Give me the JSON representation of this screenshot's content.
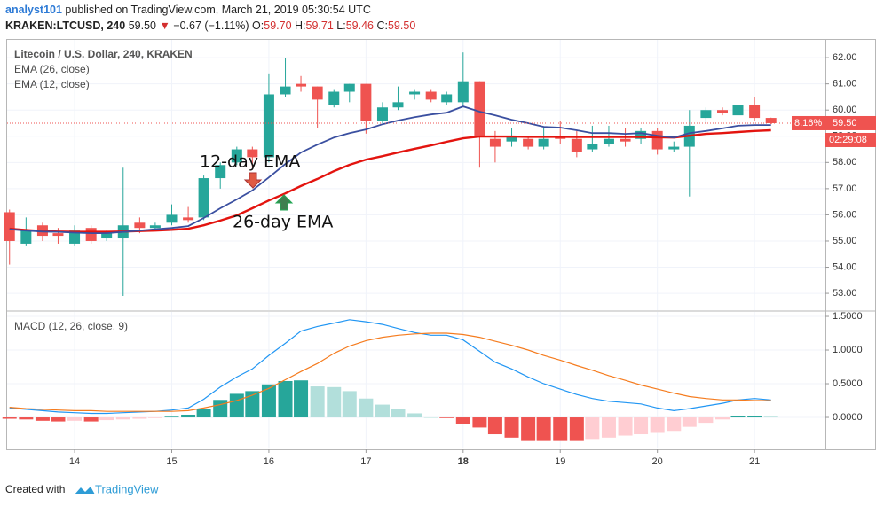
{
  "header": {
    "author": "analyst101",
    "published": "published on TradingView.com, March 21, 2019 05:30:54 UTC",
    "symbol": "KRAKEN:LTCUSD, 240",
    "last": "59.50",
    "change_arrow": "▼",
    "change": "−0.67 (−1.11%)",
    "ohlc": [
      {
        "label": "O:",
        "value": "59.70"
      },
      {
        "label": "H:",
        "value": "59.71"
      },
      {
        "label": "L:",
        "value": "59.46"
      },
      {
        "label": "C:",
        "value": "59.50"
      }
    ]
  },
  "chart_data": [
    {
      "type": "candlestick",
      "title": "Litecoin / U.S. Dollar, 240, KRAKEN",
      "x": [
        13.33,
        13.5,
        13.67,
        13.83,
        14,
        14.17,
        14.33,
        14.5,
        14.67,
        14.83,
        15,
        15.17,
        15.33,
        15.5,
        15.67,
        15.83,
        16,
        16.17,
        16.33,
        16.5,
        16.67,
        16.83,
        17,
        17.17,
        17.33,
        17.5,
        17.67,
        17.83,
        18,
        18.17,
        18.33,
        18.5,
        18.67,
        18.83,
        19,
        19.17,
        19.33,
        19.5,
        19.67,
        19.83,
        20,
        20.17,
        20.33,
        20.5,
        20.67,
        20.83,
        21,
        21.17
      ],
      "open": [
        56.1,
        54.9,
        55.6,
        55.3,
        54.9,
        55.5,
        55.1,
        55.1,
        55.7,
        55.5,
        55.7,
        55.9,
        55.9,
        57.4,
        58.0,
        58.5,
        58.2,
        60.6,
        61.0,
        60.9,
        60.2,
        60.7,
        61.0,
        59.6,
        60.1,
        60.6,
        60.7,
        60.3,
        60.3,
        61.1,
        58.9,
        58.8,
        58.9,
        58.6,
        59.0,
        58.9,
        58.5,
        58.7,
        58.9,
        58.9,
        59.2,
        58.5,
        58.6,
        59.7,
        60.0,
        59.8,
        60.2,
        59.7
      ],
      "high": [
        56.2,
        55.9,
        55.7,
        55.5,
        55.6,
        55.6,
        55.4,
        57.8,
        55.9,
        55.7,
        56.4,
        56.3,
        57.5,
        58.0,
        58.6,
        58.6,
        61.4,
        62.0,
        61.3,
        60.9,
        60.8,
        61.0,
        61.0,
        60.3,
        60.9,
        60.8,
        60.8,
        60.7,
        62.2,
        61.1,
        59.2,
        59.3,
        59.0,
        59.3,
        59.6,
        59.2,
        59.4,
        59.4,
        59.3,
        59.3,
        59.3,
        58.8,
        60.0,
        60.1,
        60.1,
        60.6,
        60.5,
        59.71
      ],
      "low": [
        54.1,
        54.8,
        55.0,
        54.9,
        54.8,
        54.9,
        55.0,
        52.9,
        55.3,
        55.4,
        55.6,
        55.7,
        55.8,
        57.0,
        57.9,
        57.8,
        58.0,
        60.5,
        60.7,
        59.3,
        60.1,
        60.3,
        59.1,
        59.5,
        60.0,
        60.4,
        60.3,
        60.2,
        60.1,
        57.8,
        58.0,
        58.6,
        58.5,
        58.5,
        58.7,
        58.2,
        58.4,
        58.6,
        58.6,
        58.7,
        58.3,
        58.4,
        56.7,
        59.5,
        59.8,
        59.7,
        59.6,
        59.46
      ],
      "close": [
        55.0,
        55.4,
        55.2,
        55.2,
        55.4,
        55.0,
        55.3,
        55.6,
        55.5,
        55.6,
        56.0,
        55.8,
        57.4,
        57.9,
        58.5,
        58.2,
        60.6,
        60.9,
        60.9,
        60.4,
        60.7,
        61.0,
        59.6,
        60.1,
        60.3,
        60.7,
        60.4,
        60.6,
        61.1,
        59.0,
        58.6,
        59.0,
        58.6,
        58.9,
        58.9,
        58.4,
        58.7,
        58.9,
        58.8,
        59.2,
        58.5,
        58.6,
        59.4,
        60.0,
        59.9,
        60.2,
        59.7,
        59.5
      ],
      "up_color": "#26a69a",
      "down_color": "#ef5350",
      "series": [
        {
          "name": "EMA (26, close)",
          "color": "#e3140f",
          "values": [
            55.47,
            55.42,
            55.38,
            55.36,
            55.35,
            55.35,
            55.35,
            55.36,
            55.38,
            55.4,
            55.43,
            55.47,
            55.6,
            55.78,
            55.98,
            56.25,
            56.55,
            56.82,
            57.1,
            57.37,
            57.67,
            57.91,
            58.11,
            58.24,
            58.38,
            58.52,
            58.65,
            58.79,
            58.92,
            58.99,
            58.99,
            58.99,
            58.98,
            58.98,
            58.98,
            58.97,
            58.97,
            58.97,
            58.97,
            58.97,
            58.96,
            58.95,
            59.02,
            59.09,
            59.12,
            59.16,
            59.2,
            59.23
          ]
        },
        {
          "name": "EMA (12, close)",
          "color": "#3a4fa0",
          "values": [
            55.45,
            55.4,
            55.36,
            55.35,
            55.32,
            55.3,
            55.3,
            55.35,
            55.4,
            55.45,
            55.5,
            55.57,
            55.88,
            56.25,
            56.59,
            56.93,
            57.43,
            57.94,
            58.38,
            58.68,
            58.95,
            59.12,
            59.26,
            59.46,
            59.6,
            59.73,
            59.83,
            59.9,
            60.14,
            59.94,
            59.8,
            59.63,
            59.5,
            59.36,
            59.33,
            59.23,
            59.12,
            59.12,
            59.09,
            59.12,
            59.02,
            58.95,
            59.12,
            59.2,
            59.3,
            59.4,
            59.43,
            59.43
          ]
        }
      ],
      "xlim": [
        13.305,
        21.73
      ],
      "xticks": [
        14,
        15,
        16,
        17,
        18,
        19,
        20,
        21
      ],
      "week_start_xticks": [
        18
      ],
      "ylim": [
        52.36,
        62.68
      ],
      "yticks": [
        {
          "value": 53,
          "label": "53.00"
        },
        {
          "value": 54,
          "label": "54.00"
        },
        {
          "value": 55,
          "label": "55.00"
        },
        {
          "value": 56,
          "label": "56.00"
        },
        {
          "value": 57,
          "label": "57.00"
        },
        {
          "value": 58,
          "label": "58.00"
        },
        {
          "value": 59,
          "label": "59.00"
        },
        {
          "value": 60,
          "label": "60.00"
        },
        {
          "value": 61,
          "label": "61.00"
        },
        {
          "value": 62,
          "label": "62.00"
        }
      ],
      "grid": true,
      "last_price_label": "59.50",
      "change_percent_label": "8.16%",
      "countdown": "02:29:08",
      "annotations": [
        {
          "text": "12-day EMA"
        },
        {
          "text": "26-day EMA"
        }
      ]
    },
    {
      "type": "macd",
      "title": "MACD (12, 26, close, 9)",
      "series": [
        {
          "color": "#2196f3",
          "values": [
            0.14,
            0.12,
            0.1,
            0.08,
            0.07,
            0.06,
            0.06,
            0.07,
            0.08,
            0.09,
            0.11,
            0.14,
            0.27,
            0.45,
            0.6,
            0.72,
            0.92,
            1.1,
            1.28,
            1.35,
            1.4,
            1.45,
            1.42,
            1.38,
            1.32,
            1.26,
            1.22,
            1.22,
            1.15,
            0.98,
            0.82,
            0.72,
            0.6,
            0.5,
            0.42,
            0.34,
            0.28,
            0.24,
            0.22,
            0.2,
            0.14,
            0.1,
            0.13,
            0.17,
            0.21,
            0.26,
            0.28,
            0.26
          ]
        },
        {
          "color": "#f57c1f",
          "values": [
            0.15,
            0.13,
            0.12,
            0.11,
            0.1,
            0.1,
            0.09,
            0.09,
            0.09,
            0.09,
            0.09,
            0.1,
            0.14,
            0.19,
            0.25,
            0.33,
            0.43,
            0.56,
            0.68,
            0.8,
            0.95,
            1.06,
            1.14,
            1.19,
            1.22,
            1.24,
            1.25,
            1.25,
            1.23,
            1.19,
            1.13,
            1.07,
            1.0,
            0.92,
            0.85,
            0.77,
            0.7,
            0.62,
            0.55,
            0.48,
            0.42,
            0.36,
            0.31,
            0.28,
            0.26,
            0.26,
            0.25,
            0.25
          ]
        }
      ],
      "histogram": {
        "values": [
          -0.02,
          -0.03,
          -0.05,
          -0.06,
          -0.05,
          -0.06,
          -0.04,
          -0.03,
          -0.02,
          -0.01,
          0.01,
          0.04,
          0.13,
          0.26,
          0.35,
          0.39,
          0.49,
          0.54,
          0.55,
          0.46,
          0.45,
          0.39,
          0.28,
          0.19,
          0.12,
          0.06,
          0.0,
          -0.01,
          -0.1,
          -0.15,
          -0.25,
          -0.3,
          -0.35,
          -0.35,
          -0.35,
          -0.35,
          -0.32,
          -0.3,
          -0.27,
          -0.25,
          -0.23,
          -0.2,
          -0.14,
          -0.08,
          -0.03,
          0.02,
          0.02,
          0.01
        ],
        "colors": {
          "up_rising": "#26a69a",
          "up_falling": "#b2dfdb",
          "down_falling": "#ef5350",
          "down_rising": "#ffcdd2"
        }
      },
      "ylim": [
        -0.447,
        1.566
      ],
      "yticks": [
        {
          "value": 0,
          "label": "0.0000"
        },
        {
          "value": 0.5,
          "label": "0.5000"
        },
        {
          "value": 1,
          "label": "1.0000"
        },
        {
          "value": 1.5,
          "label": "1.5000"
        }
      ]
    }
  ],
  "footer": {
    "created": "Created with",
    "brand": "TradingView"
  }
}
